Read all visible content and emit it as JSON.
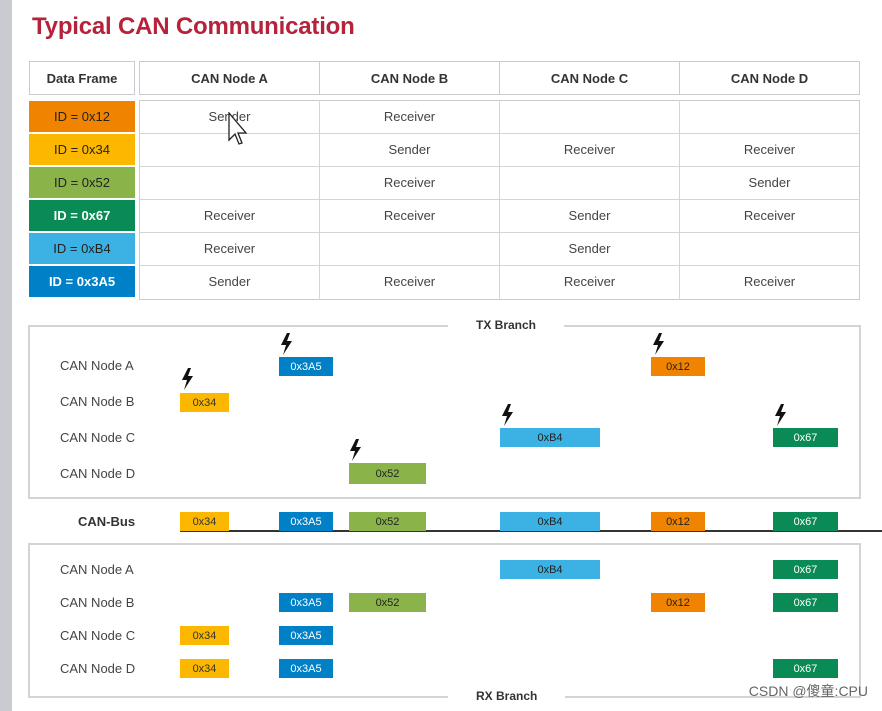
{
  "title": "Typical CAN Communication",
  "table": {
    "corner": "Data Frame",
    "nodes": [
      "CAN Node A",
      "CAN Node B",
      "CAN Node C",
      "CAN Node D"
    ],
    "rows": [
      {
        "id": "ID = 0x12",
        "color": "#f08400",
        "cells": [
          "Sender",
          "Receiver",
          "",
          ""
        ]
      },
      {
        "id": "ID = 0x34",
        "color": "#fcb800",
        "cells": [
          "",
          "Sender",
          "Receiver",
          "Receiver"
        ]
      },
      {
        "id": "ID = 0x52",
        "color": "#8ab44a",
        "cells": [
          "",
          "Receiver",
          "",
          "Sender"
        ]
      },
      {
        "id": "ID = 0x67",
        "color": "#0a8a55",
        "cells": [
          "Receiver",
          "Receiver",
          "Sender",
          "Receiver"
        ]
      },
      {
        "id": "ID = 0xB4",
        "color": "#3bb2e3",
        "cells": [
          "Receiver",
          "",
          "Sender",
          ""
        ]
      },
      {
        "id": "ID = 0x3A5",
        "color": "#0080c6",
        "cells": [
          "Sender",
          "Receiver",
          "Receiver",
          "Receiver"
        ]
      }
    ]
  },
  "tx": {
    "title": "TX Branch",
    "nodes": [
      "CAN Node A",
      "CAN Node B",
      "CAN Node C",
      "CAN Node D"
    ]
  },
  "bus": {
    "label": "CAN-Bus"
  },
  "rx": {
    "title": "RX Branch",
    "nodes": [
      "CAN Node A",
      "CAN Node B",
      "CAN Node C",
      "CAN Node D"
    ]
  },
  "frames": {
    "f34": "0x34",
    "f3a5": "0x3A5",
    "f52": "0x52",
    "fb4": "0xB4",
    "f12": "0x12",
    "f67": "0x67"
  },
  "colors": {
    "f12": "#f08400",
    "f34": "#fcb800",
    "f52": "#8ab44a",
    "f67": "#0a8a55",
    "fb4": "#3bb2e3",
    "f3a5": "#0080c6",
    "title": "#b5223a"
  },
  "watermark": "CSDN @傻童:CPU"
}
